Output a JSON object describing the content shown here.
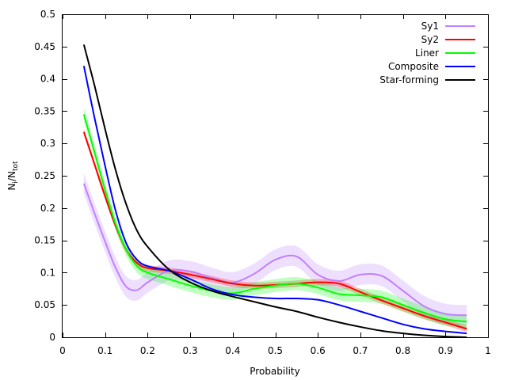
{
  "chart_data": {
    "type": "line",
    "title": "",
    "xlabel": "Probability",
    "ylabel_main": "N",
    "ylabel_sub1": "i",
    "ylabel_mid": "/N",
    "ylabel_sub2": "tot",
    "xlim": [
      0,
      1
    ],
    "ylim": [
      0,
      0.5
    ],
    "xticks": [
      0,
      0.1,
      0.2,
      0.3,
      0.4,
      0.5,
      0.6,
      0.7,
      0.8,
      0.9,
      1
    ],
    "xtick_labels": [
      "0",
      "0.1",
      "0.2",
      "0.3",
      "0.4",
      "0.5",
      "0.6",
      "0.7",
      "0.8",
      "0.9",
      "1"
    ],
    "yticks": [
      0,
      0.05,
      0.1,
      0.15,
      0.2,
      0.25,
      0.3,
      0.35,
      0.4,
      0.45,
      0.5
    ],
    "ytick_labels": [
      "0",
      "0.05",
      "0.1",
      "0.15",
      "0.2",
      "0.25",
      "0.3",
      "0.35",
      "0.4",
      "0.45",
      "0.5"
    ],
    "legend_position": "top-right",
    "x": [
      0.05,
      0.075,
      0.1,
      0.125,
      0.15,
      0.175,
      0.2,
      0.25,
      0.3,
      0.35,
      0.4,
      0.45,
      0.5,
      0.55,
      0.6,
      0.65,
      0.7,
      0.75,
      0.8,
      0.85,
      0.9,
      0.95
    ],
    "series": [
      {
        "name": "Sy1",
        "color": "#c080ff",
        "values": [
          0.238,
          0.192,
          0.148,
          0.107,
          0.078,
          0.073,
          0.085,
          0.103,
          0.102,
          0.092,
          0.085,
          0.098,
          0.12,
          0.125,
          0.097,
          0.087,
          0.097,
          0.095,
          0.072,
          0.048,
          0.036,
          0.034
        ],
        "band": 0.016
      },
      {
        "name": "Sy2",
        "color": "#ff0000",
        "values": [
          0.318,
          0.268,
          0.218,
          0.172,
          0.135,
          0.115,
          0.107,
          0.103,
          0.097,
          0.09,
          0.083,
          0.08,
          0.081,
          0.083,
          0.085,
          0.083,
          0.07,
          0.057,
          0.045,
          0.033,
          0.023,
          0.013
        ],
        "band": 0.005
      },
      {
        "name": "Liner",
        "color": "#00ff00",
        "values": [
          0.345,
          0.287,
          0.228,
          0.175,
          0.135,
          0.11,
          0.1,
          0.09,
          0.08,
          0.072,
          0.068,
          0.075,
          0.08,
          0.083,
          0.077,
          0.067,
          0.065,
          0.062,
          0.05,
          0.038,
          0.028,
          0.024
        ],
        "band": 0.01
      },
      {
        "name": "Composite",
        "color": "#0000ff",
        "values": [
          0.42,
          0.34,
          0.265,
          0.195,
          0.145,
          0.12,
          0.11,
          0.103,
          0.09,
          0.075,
          0.066,
          0.062,
          0.06,
          0.06,
          0.058,
          0.05,
          0.04,
          0.03,
          0.02,
          0.013,
          0.009,
          0.006
        ],
        "band": 0
      },
      {
        "name": "Star-forming",
        "color": "#000000",
        "values": [
          0.453,
          0.39,
          0.322,
          0.258,
          0.205,
          0.165,
          0.14,
          0.105,
          0.085,
          0.072,
          0.063,
          0.055,
          0.047,
          0.04,
          0.031,
          0.023,
          0.016,
          0.01,
          0.006,
          0.003,
          0.001,
          0.0
        ],
        "band": 0
      }
    ]
  }
}
